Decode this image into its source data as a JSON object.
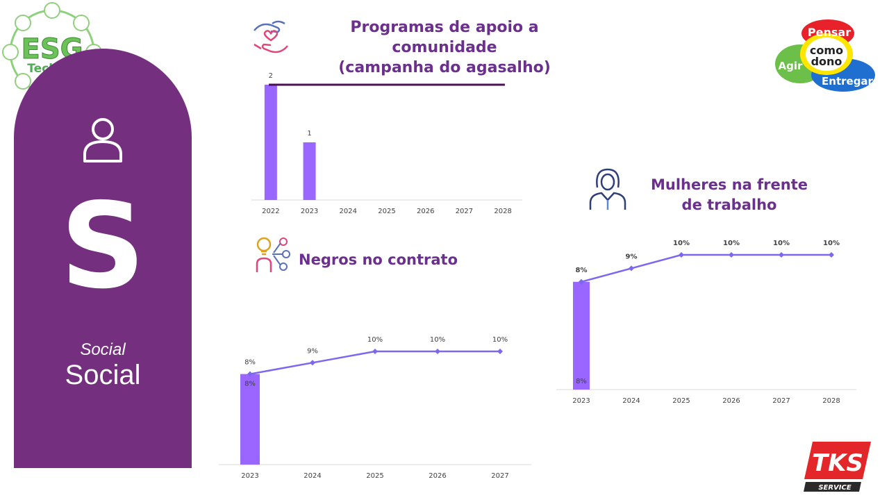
{
  "logos": {
    "esg_line1": "ESG",
    "esg_line2": "Teckma",
    "pcd_pensar": "Pensar",
    "pcd_como": "como",
    "pcd_dono": "dono",
    "pcd_agir": "Agir",
    "pcd_entregar": "Entregar",
    "tks": "TKS",
    "tks_sub": "SERVICE"
  },
  "panel": {
    "letter": "S",
    "italic_label": "Social",
    "label": "Social",
    "icon": "person-icon"
  },
  "colors": {
    "panel": "#74307f",
    "bar": "#9966ff",
    "line": "#7b68ee",
    "target_line": "#4b0f52",
    "title": "#6b2f8e"
  },
  "chart_data": [
    {
      "type": "bar",
      "title": "Programas de apoio a comunidade (campanha do agasalho)",
      "title_line1": "Programas de apoio a comunidade",
      "title_line2": "(campanha do agasalho)",
      "categories": [
        "2022",
        "2023",
        "2024",
        "2025",
        "2026",
        "2027",
        "2028"
      ],
      "values": [
        2,
        1,
        null,
        null,
        null,
        null,
        null
      ],
      "data_labels": [
        "2",
        "1",
        "",
        "",
        "",
        "",
        ""
      ],
      "target_line": 2,
      "ylim": [
        0,
        2
      ],
      "grid": false,
      "icon": "helping-hands-icon"
    },
    {
      "type": "bar+line",
      "title": "Negros no contrato",
      "categories": [
        "2023",
        "2024",
        "2025",
        "2026",
        "2027"
      ],
      "bar_values": [
        8,
        null,
        null,
        null,
        null
      ],
      "bar_labels": [
        "8%",
        "",
        "",
        "",
        ""
      ],
      "line_values": [
        8,
        9,
        10,
        10,
        10
      ],
      "line_labels": [
        "8%",
        "9%",
        "10%",
        "10%",
        "10%"
      ],
      "ylim": [
        0,
        10
      ],
      "grid": false,
      "icon": "idea-person-icon"
    },
    {
      "type": "bar+line",
      "title": "Mulheres na frente de trabalho",
      "title_line1": "Mulheres na frente",
      "title_line2": "de trabalho",
      "categories": [
        "2023",
        "2024",
        "2025",
        "2026",
        "2027",
        "2028"
      ],
      "bar_values": [
        8,
        null,
        null,
        null,
        null,
        null
      ],
      "bar_labels": [
        "8%",
        "",
        "",
        "",
        "",
        ""
      ],
      "line_values": [
        8,
        9,
        10,
        10,
        10,
        10
      ],
      "line_labels": [
        "8%",
        "9%",
        "10%",
        "10%",
        "10%",
        "10%"
      ],
      "ylim": [
        0,
        10
      ],
      "grid": false,
      "icon": "businesswoman-icon"
    }
  ]
}
